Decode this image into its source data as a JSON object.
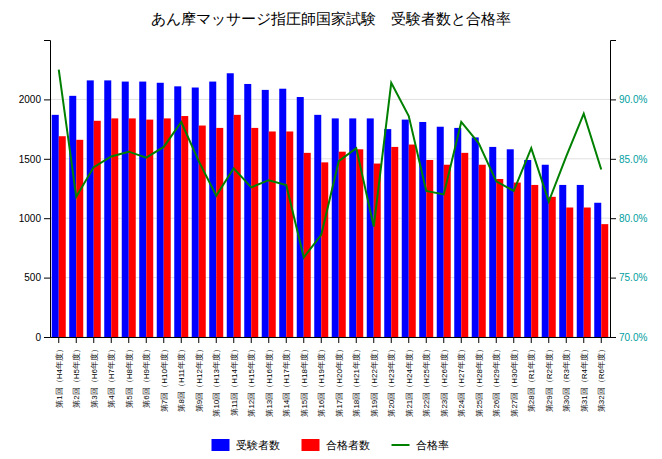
{
  "chart_data": {
    "type": "bar",
    "title": "あん摩マッサージ指圧師国家試験　受験者数と合格率",
    "categories": [
      "第1回（H4年度）",
      "第2回（H5年度）",
      "第3回（H6年度）",
      "第4回（H7年度）",
      "第5回（H8年度）",
      "第6回（H9年度）",
      "第7回（H10年度）",
      "第8回（H11年度）",
      "第9回（H12年度）",
      "第10回（H13年度）",
      "第11回（H14年度）",
      "第12回（H15年度）",
      "第13回（H16年度）",
      "第14回（H17年度）",
      "第15回（H18年度）",
      "第16回（H19年度）",
      "第17回（H20年度）",
      "第18回（H21年度）",
      "第19回（H22年度）",
      "第20回（H23年度）",
      "第21回（H24年度）",
      "第22回（H25年度）",
      "第23回（H26年度）",
      "第24回（H27年度）",
      "第25回（H28年度）",
      "第26回（H29年度）",
      "第27回（H30年度）",
      "第28回（R1年度）",
      "第29回（R2年度）",
      "第30回（R3年度）",
      "第31回（R4年度）",
      "第32回（R6年度）"
    ],
    "series": [
      {
        "name": "受験者数",
        "type": "bar",
        "color": "#0000FF",
        "values": [
          1870,
          2030,
          2160,
          2160,
          2150,
          2150,
          2140,
          2110,
          2100,
          2150,
          2220,
          2130,
          2080,
          2090,
          2020,
          1870,
          1840,
          1840,
          1840,
          1750,
          1830,
          1810,
          1770,
          1760,
          1680,
          1600,
          1580,
          1490,
          1450,
          1280,
          1280,
          1130
        ]
      },
      {
        "name": "合格者数",
        "type": "bar",
        "color": "#FF0000",
        "values": [
          1690,
          1660,
          1820,
          1840,
          1840,
          1830,
          1840,
          1860,
          1780,
          1760,
          1870,
          1760,
          1730,
          1730,
          1550,
          1470,
          1560,
          1580,
          1460,
          1600,
          1620,
          1490,
          1450,
          1550,
          1450,
          1330,
          1300,
          1280,
          1180,
          1090,
          1090,
          950
        ]
      },
      {
        "name": "合格率",
        "type": "line",
        "axis": "y2",
        "color": "#008000",
        "values": [
          92.5,
          81.8,
          84.3,
          85.2,
          85.6,
          85.1,
          86.0,
          88.1,
          84.8,
          81.9,
          84.2,
          82.6,
          83.2,
          82.8,
          76.7,
          78.6,
          84.8,
          85.9,
          79.3,
          91.4,
          88.6,
          82.3,
          82.0,
          88.1,
          86.3,
          83.1,
          82.3,
          85.9,
          81.4,
          85.2,
          88.8,
          84.1
        ]
      }
    ],
    "ylim": [
      0,
      2500
    ],
    "yticks": [
      0,
      500,
      1000,
      1500,
      2000
    ],
    "y2lim": [
      70.0,
      95.0
    ],
    "y2ticks": [
      {
        "value": 70.0,
        "label": "70.0%"
      },
      {
        "value": 75.0,
        "label": "75.0%"
      },
      {
        "value": 80.0,
        "label": "80.0%"
      },
      {
        "value": 85.0,
        "label": "85.0%"
      },
      {
        "value": 90.0,
        "label": "90.0%"
      }
    ],
    "grid": true,
    "legend": "bottom"
  }
}
